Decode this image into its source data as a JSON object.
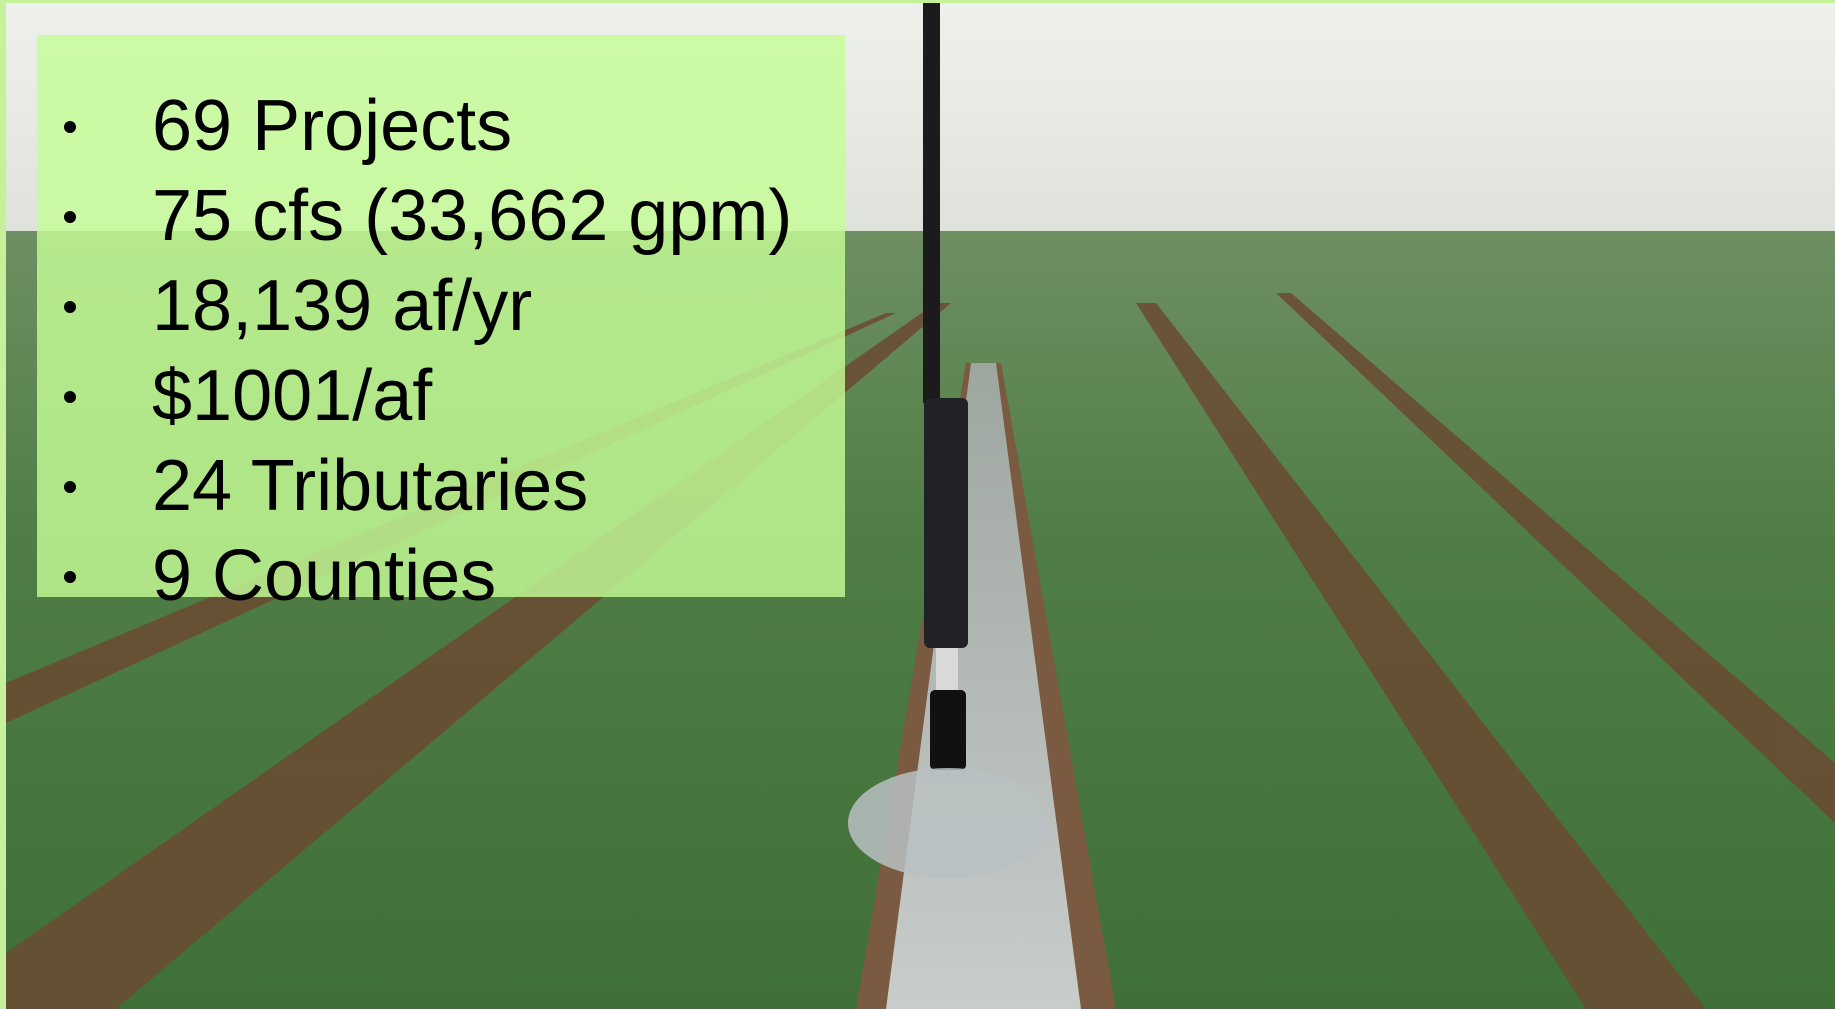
{
  "bullets": [
    "69 Projects",
    "75 cfs (33,662 gpm)",
    "18,139 af/yr",
    "$1001/af",
    "24 Tributaries",
    "9 Counties"
  ]
}
